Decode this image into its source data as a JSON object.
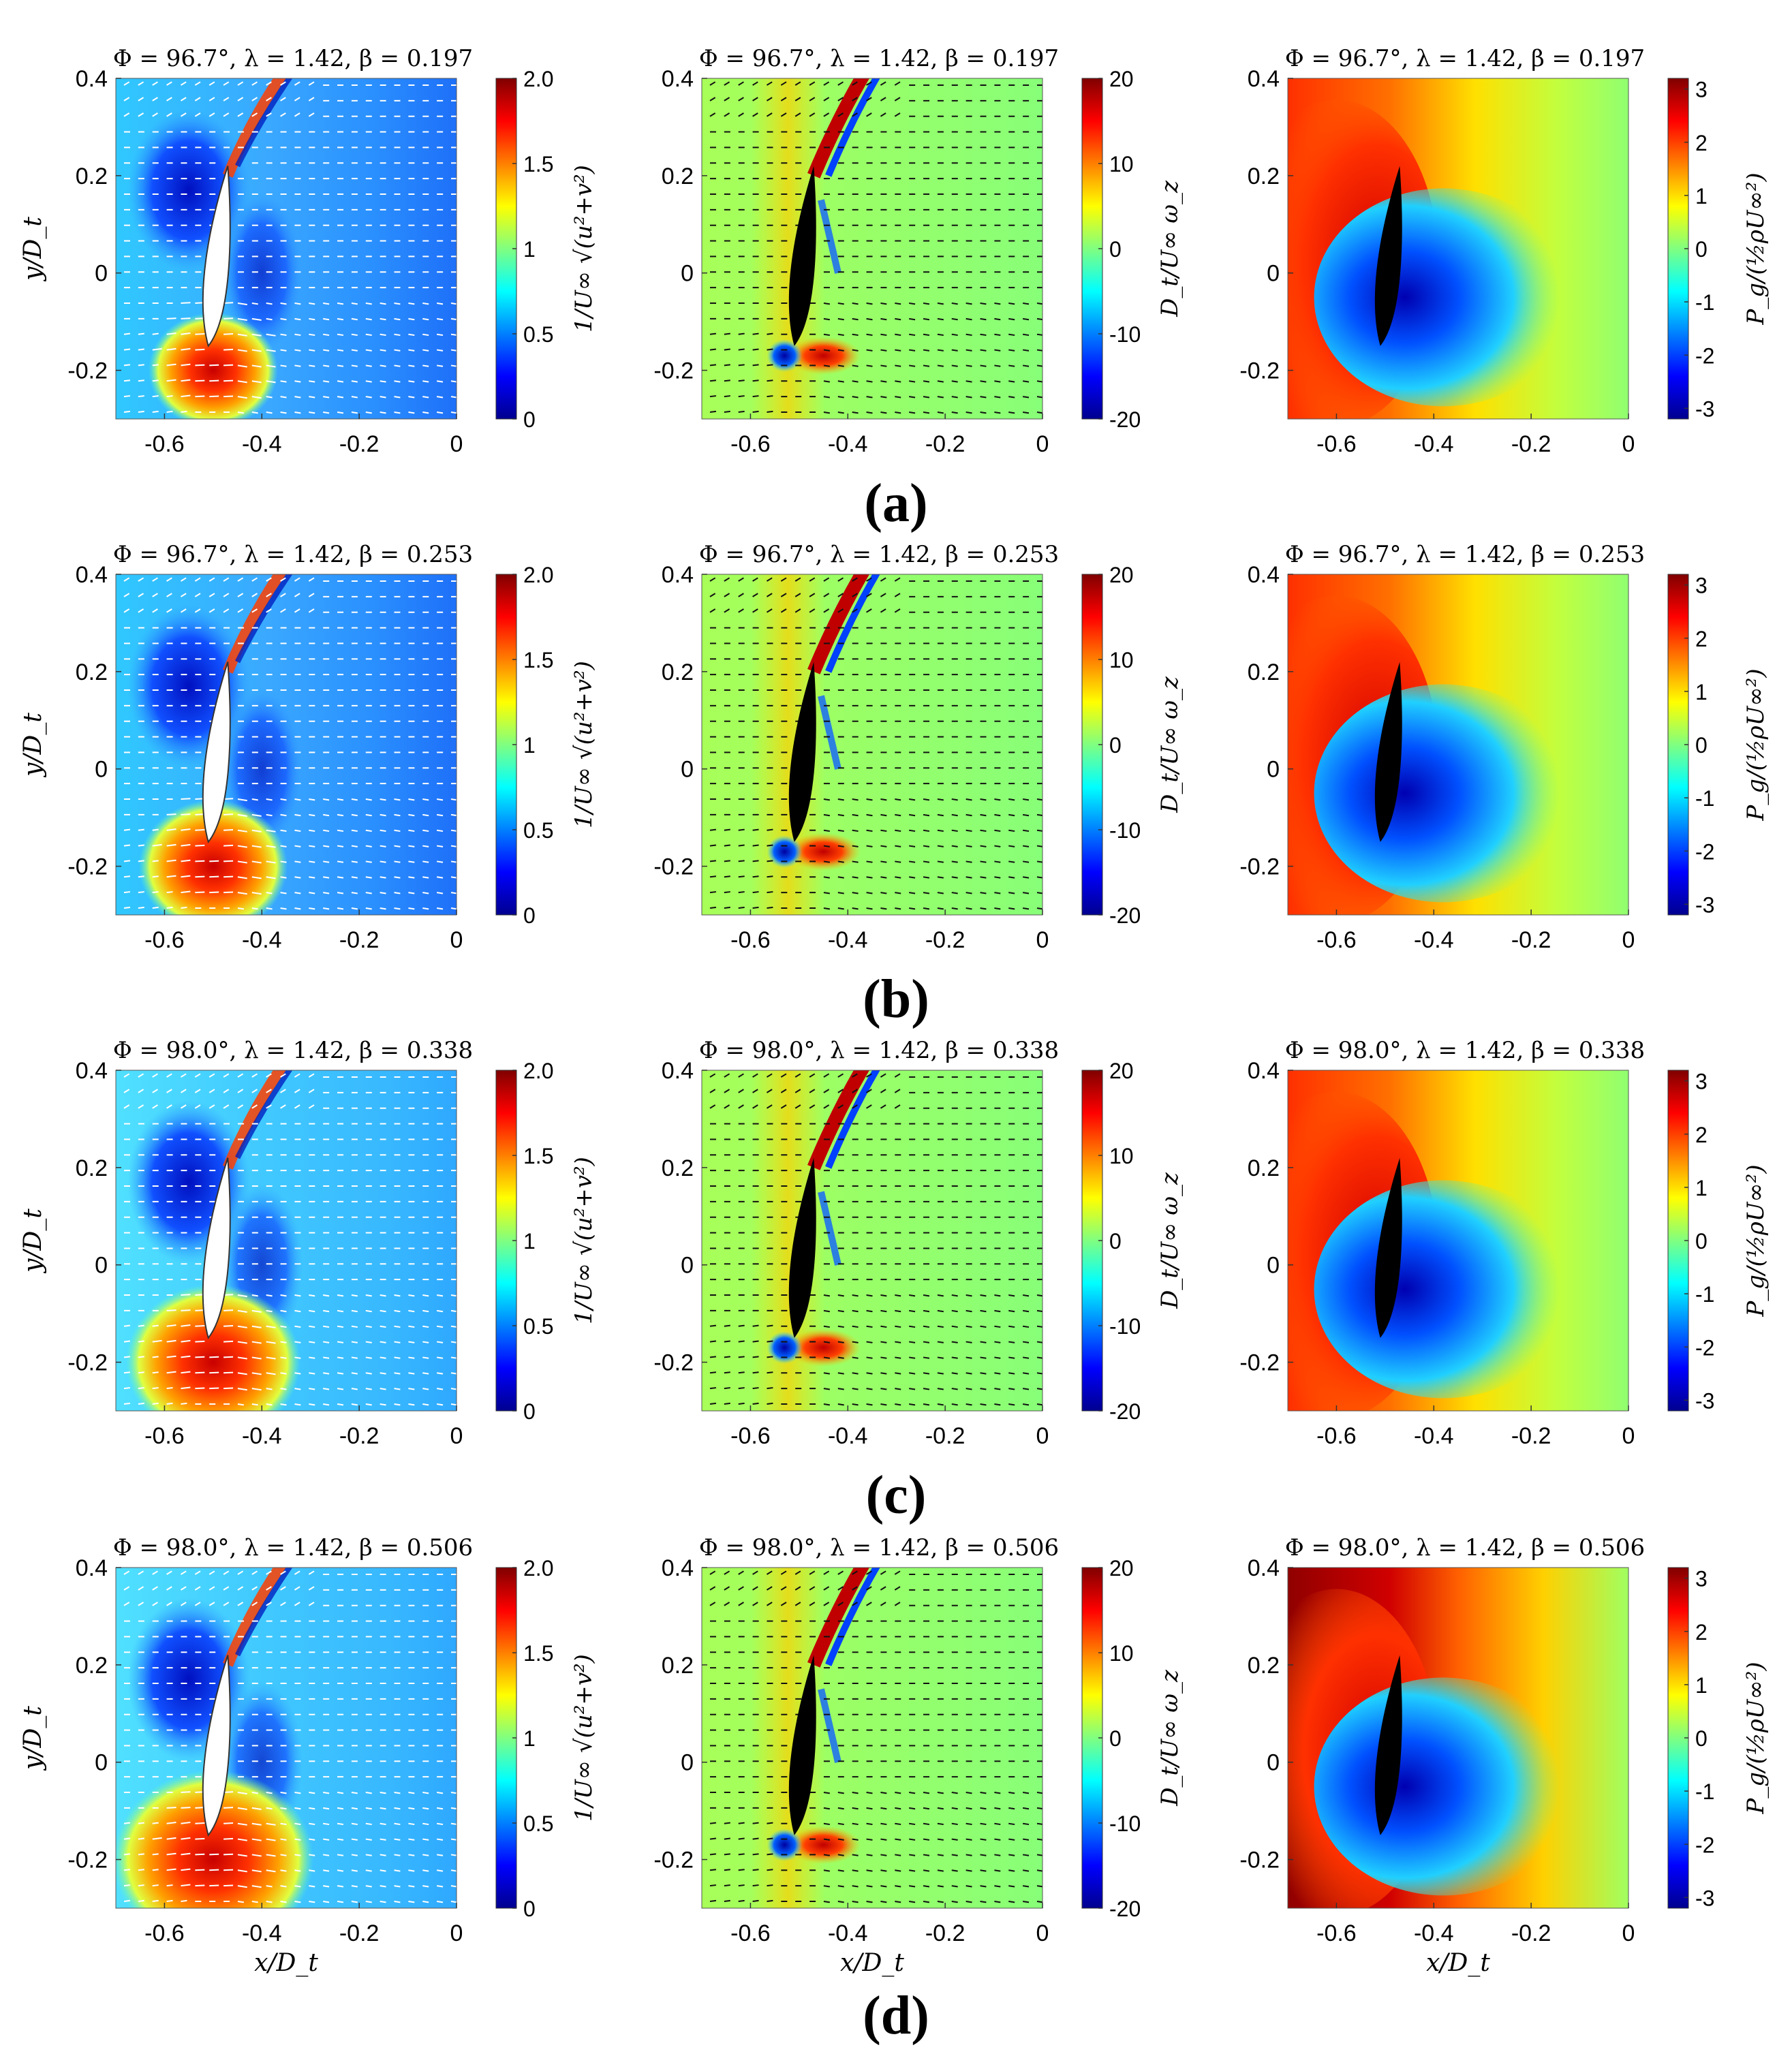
{
  "figure": {
    "rows": [
      "a",
      "b",
      "c",
      "d"
    ],
    "row_labels": [
      "(a)",
      "(b)",
      "(c)",
      "(d)"
    ]
  },
  "panel_titles": [
    "Φ = 96.7°, λ = 1.42, β = 0.197",
    "Φ = 96.7°, λ = 1.42, β = 0.253",
    "Φ = 98.0°, λ = 1.42, β = 0.338",
    "Φ = 98.0°, λ = 1.42, β = 0.506"
  ],
  "axes": {
    "xlabel": "x/D_t",
    "ylabel": "y/D_t",
    "x_ticks": [
      -0.6,
      -0.4,
      -0.2,
      0
    ],
    "x_tick_labels": [
      "-0.6",
      "-0.4",
      "-0.2",
      "0"
    ],
    "y_ticks": [
      0.4,
      0.2,
      0,
      -0.2
    ],
    "y_tick_labels": [
      "0.4",
      "0.2",
      "0",
      "-0.2"
    ],
    "xlim": [
      -0.7,
      0
    ],
    "ylim": [
      -0.3,
      0.4
    ]
  },
  "colorbars": {
    "velocity": {
      "ticks": [
        "2.0",
        "1.5",
        "1",
        "0.5",
        "0"
      ],
      "label": "1/U∞ √(u²+v²)",
      "range": [
        0,
        2.0
      ]
    },
    "vorticity": {
      "ticks": [
        "20",
        "10",
        "0",
        "-10",
        "-20"
      ],
      "label": "D_t/U∞ ω_z",
      "range": [
        -20,
        20
      ]
    },
    "pressure": {
      "ticks": [
        "3",
        "2",
        "1",
        "0",
        "-1",
        "-2",
        "-3"
      ],
      "label": "P_g/(½ρU∞²)",
      "range": [
        -3.2,
        3.2
      ]
    }
  },
  "colors": {
    "jet_dark_blue": "#00008f",
    "jet_blue": "#0050ff",
    "jet_cyan": "#20e0ff",
    "jet_green": "#90ff70",
    "jet_yellow": "#ffe000",
    "jet_orange": "#ff7000",
    "jet_red": "#e00000",
    "jet_dark_red": "#800000"
  },
  "chart_data": [
    {
      "type": "heatmap",
      "row": "a",
      "field": "velocity magnitude",
      "title": "Φ = 96.7°, λ = 1.42, β = 0.197",
      "xlim": [
        -0.7,
        0
      ],
      "ylim": [
        -0.3,
        0.4
      ]
    },
    {
      "type": "heatmap",
      "row": "a",
      "field": "vorticity",
      "title": "Φ = 96.7°, λ = 1.42, β = 0.197",
      "xlim": [
        -0.7,
        0
      ],
      "ylim": [
        -0.3,
        0.4
      ]
    },
    {
      "type": "heatmap",
      "row": "a",
      "field": "pressure",
      "title": "Φ = 96.7°, λ = 1.42, β = 0.197",
      "xlim": [
        -0.7,
        0
      ],
      "ylim": [
        -0.3,
        0.4
      ]
    },
    {
      "type": "heatmap",
      "row": "b",
      "field": "velocity magnitude",
      "title": "Φ = 96.7°, λ = 1.42, β = 0.253",
      "xlim": [
        -0.7,
        0
      ],
      "ylim": [
        -0.3,
        0.4
      ]
    },
    {
      "type": "heatmap",
      "row": "b",
      "field": "vorticity",
      "title": "Φ = 96.7°, λ = 1.42, β = 0.253",
      "xlim": [
        -0.7,
        0
      ],
      "ylim": [
        -0.3,
        0.4
      ]
    },
    {
      "type": "heatmap",
      "row": "b",
      "field": "pressure",
      "title": "Φ = 96.7°, λ = 1.42, β = 0.253",
      "xlim": [
        -0.7,
        0
      ],
      "ylim": [
        -0.3,
        0.4
      ]
    },
    {
      "type": "heatmap",
      "row": "c",
      "field": "velocity magnitude",
      "title": "Φ = 98.0°, λ = 1.42, β = 0.338",
      "xlim": [
        -0.7,
        0
      ],
      "ylim": [
        -0.3,
        0.4
      ]
    },
    {
      "type": "heatmap",
      "row": "c",
      "field": "vorticity",
      "title": "Φ = 98.0°, λ = 1.42, β = 0.338",
      "xlim": [
        -0.7,
        0
      ],
      "ylim": [
        -0.3,
        0.4
      ]
    },
    {
      "type": "heatmap",
      "row": "c",
      "field": "pressure",
      "title": "Φ = 98.0°, λ = 1.42, β = 0.338",
      "xlim": [
        -0.7,
        0
      ],
      "ylim": [
        -0.3,
        0.4
      ]
    },
    {
      "type": "heatmap",
      "row": "d",
      "field": "velocity magnitude",
      "title": "Φ = 98.0°, λ = 1.42, β = 0.506",
      "xlim": [
        -0.7,
        0
      ],
      "ylim": [
        -0.3,
        0.4
      ]
    },
    {
      "type": "heatmap",
      "row": "d",
      "field": "vorticity",
      "title": "Φ = 98.0°, λ = 1.42, β = 0.506",
      "xlim": [
        -0.7,
        0
      ],
      "ylim": [
        -0.3,
        0.4
      ]
    },
    {
      "type": "heatmap",
      "row": "d",
      "field": "pressure",
      "title": "Φ = 98.0°, λ = 1.42, β = 0.506",
      "xlim": [
        -0.7,
        0
      ],
      "ylim": [
        -0.3,
        0.4
      ]
    }
  ]
}
